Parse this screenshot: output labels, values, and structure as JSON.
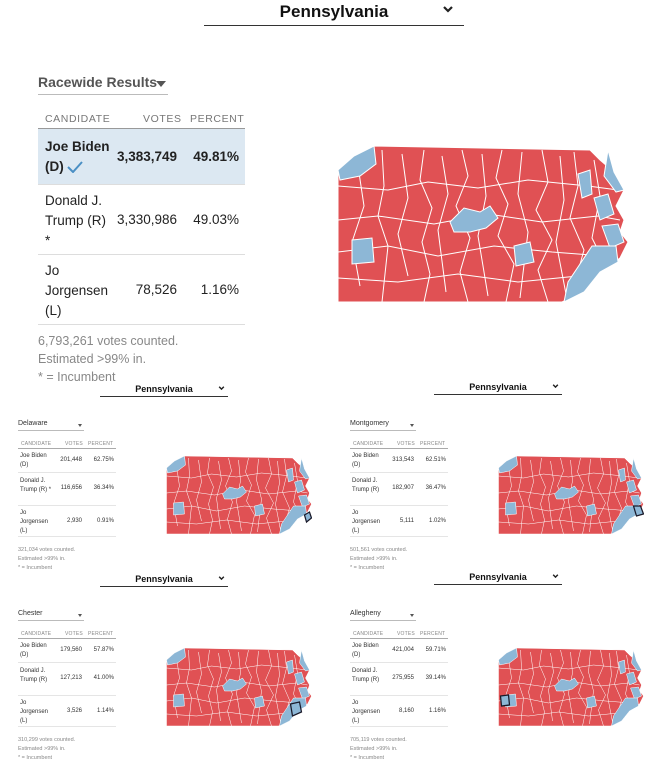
{
  "main": {
    "state_select": "Pennsylvania",
    "race_select": "Racewide Results",
    "headers": {
      "candidate": "CANDIDATE",
      "votes": "VOTES",
      "percent": "PERCENT"
    },
    "candidates": [
      {
        "name": "Joe Biden (D)",
        "votes": "3,383,749",
        "percent": "49.81%"
      },
      {
        "name": "Donald J. Trump (R) *",
        "votes": "3,330,986",
        "percent": "49.03%"
      },
      {
        "name": "Jo Jorgensen (L)",
        "votes": "78,526",
        "percent": "1.16%"
      }
    ],
    "votes_counted": "6,793,261 votes counted.",
    "estimated": "Estimated >99% in.",
    "incumbent_note": "* = Incumbent"
  },
  "mini_panels": [
    {
      "state_select": "Pennsylvania",
      "county": "Delaware",
      "headers": {
        "candidate": "CANDIDATE",
        "votes": "VOTES",
        "percent": "PERCENT"
      },
      "candidates": [
        {
          "name": "Joe Biden (D)",
          "votes": "201,448",
          "percent": "62.75%"
        },
        {
          "name": "Donald J. Trump (R) *",
          "votes": "116,656",
          "percent": "36.34%"
        },
        {
          "name": "Jo Jorgensen (L)",
          "votes": "2,930",
          "percent": "0.91%"
        }
      ],
      "votes_counted": "321,034 votes counted.",
      "estimated": "Estimated >99% in.",
      "incumbent_note": "* = Incumbent"
    },
    {
      "state_select": "Pennsylvania",
      "county": "Montgomery",
      "headers": {
        "candidate": "CANDIDATE",
        "votes": "VOTES",
        "percent": "PERCENT"
      },
      "candidates": [
        {
          "name": "Joe Biden (D)",
          "votes": "313,543",
          "percent": "62.51%"
        },
        {
          "name": "Donald J. Trump (R)",
          "votes": "182,907",
          "percent": "36.47%"
        },
        {
          "name": "Jo Jorgensen (L)",
          "votes": "5,111",
          "percent": "1.02%"
        }
      ],
      "votes_counted": "501,561 votes counted.",
      "estimated": "Estimated >99% in.",
      "incumbent_note": "* = Incumbent"
    },
    {
      "state_select": "Pennsylvania",
      "county": "Chester",
      "headers": {
        "candidate": "CANDIDATE",
        "votes": "VOTES",
        "percent": "PERCENT"
      },
      "candidates": [
        {
          "name": "Joe Biden (D)",
          "votes": "179,560",
          "percent": "57.87%"
        },
        {
          "name": "Donald J. Trump (R)",
          "votes": "127,213",
          "percent": "41.00%"
        },
        {
          "name": "Jo Jorgensen (L)",
          "votes": "3,526",
          "percent": "1.14%"
        }
      ],
      "votes_counted": "310,299 votes counted.",
      "estimated": "Estimated >99% in.",
      "incumbent_note": "* = Incumbent"
    },
    {
      "state_select": "Pennsylvania",
      "county": "Allegheny",
      "headers": {
        "candidate": "CANDIDATE",
        "votes": "VOTES",
        "percent": "PERCENT"
      },
      "candidates": [
        {
          "name": "Joe Biden (D)",
          "votes": "421,004",
          "percent": "59.71%"
        },
        {
          "name": "Donald J. Trump (R)",
          "votes": "275,955",
          "percent": "39.14%"
        },
        {
          "name": "Jo Jorgensen (L)",
          "votes": "8,160",
          "percent": "1.16%"
        }
      ],
      "votes_counted": "705,119 votes counted.",
      "estimated": "Estimated >99% in.",
      "incumbent_note": "* = Incumbent"
    }
  ],
  "colors": {
    "republican": "#e05154",
    "democrat": "#8db7d6",
    "winner_row": "#dce8f2"
  },
  "icons": {
    "state_select": "chevron-down-icon",
    "race_select": "triangle-down-icon",
    "winner": "checkmark-icon"
  }
}
